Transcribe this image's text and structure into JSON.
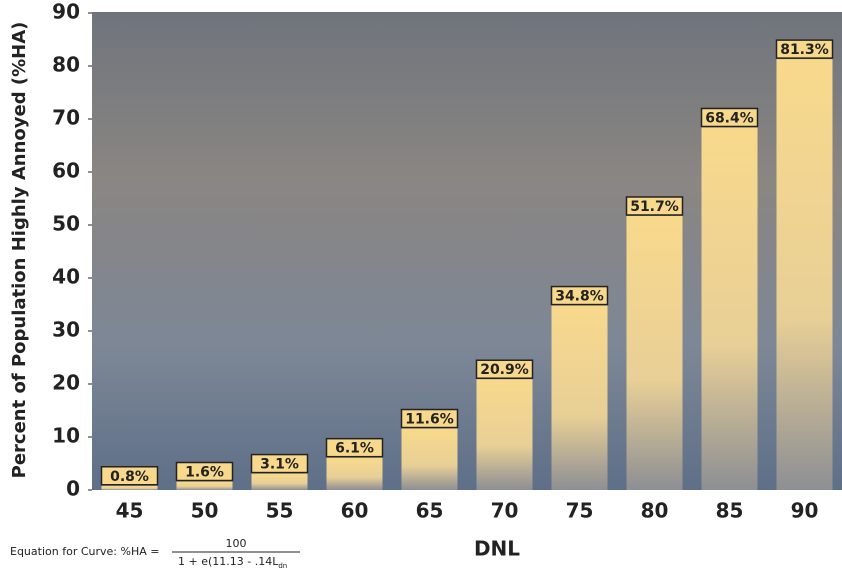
{
  "chart_data": {
    "type": "bar",
    "categories": [
      "45",
      "50",
      "55",
      "60",
      "65",
      "70",
      "75",
      "80",
      "85",
      "90"
    ],
    "values": [
      0.8,
      1.6,
      3.1,
      6.1,
      11.6,
      20.9,
      34.8,
      51.7,
      68.4,
      81.3
    ],
    "value_labels": [
      "0.8%",
      "1.6%",
      "3.1%",
      "6.1%",
      "11.6%",
      "20.9%",
      "34.8%",
      "51.7%",
      "68.4%",
      "81.3%"
    ],
    "color": "#f8d98c",
    "ylim": [
      0,
      90
    ],
    "yticks": [
      0,
      10,
      20,
      30,
      40,
      50,
      60,
      70,
      80,
      90
    ],
    "y_label": "Percent of Population Highly Annoyed (%HA)",
    "x_label": "DNL"
  },
  "equation": {
    "label": "Equation for Curve: %HA =",
    "numerator": "100",
    "denominator": "1 + e(11.13 - .14L",
    "subscript": "dn"
  }
}
